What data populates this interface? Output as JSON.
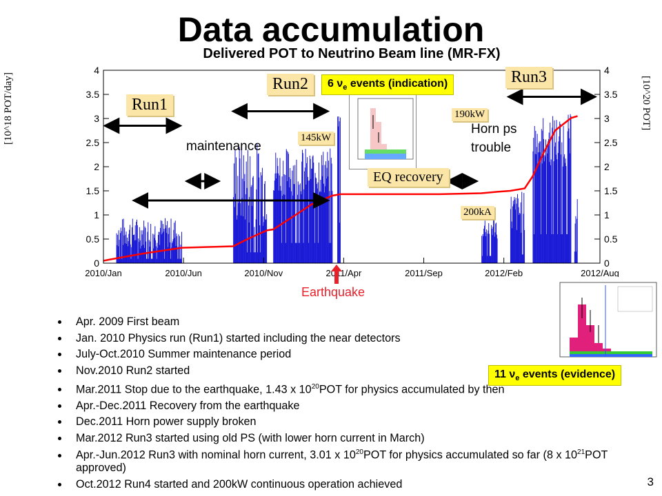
{
  "slide": {
    "title": "Data accumulation",
    "page_number": "3"
  },
  "chart_data": {
    "type": "bar",
    "title": "Delivered POT to Neutrino Beam line (MR-FX)",
    "ylabel_left": "[10^18 POT/day]",
    "ylabel_right": "[10^20 POT]",
    "ylim_left": [
      0,
      4
    ],
    "ylim_right": [
      0,
      4
    ],
    "yticks": [
      "0",
      "0.5",
      "1",
      "1.5",
      "2",
      "2.5",
      "3",
      "3.5",
      "4"
    ],
    "xtick_labels": [
      "2010/Jan",
      "2010/Jun",
      "2010/Nov",
      "2011/Apr",
      "2011/Sep",
      "2012/Feb",
      "2012/Aug"
    ],
    "xtick_months": [
      0,
      5,
      10,
      15,
      20,
      25,
      31
    ],
    "x_range_months": [
      0,
      31
    ],
    "daily_pot_bars_color": "#1a1ad6",
    "cumulative_line_color": "#ff0000",
    "daily_segments": [
      {
        "start": 0.8,
        "end": 4.9,
        "level": 0.3,
        "peak": 0.95
      },
      {
        "start": 8.1,
        "end": 10.2,
        "level": 0.75,
        "peak": 2.55
      },
      {
        "start": 10.6,
        "end": 14.3,
        "level": 1.4,
        "peak": 2.4
      },
      {
        "start": 14.6,
        "end": 14.8,
        "level": 2.8,
        "peak": 3.1
      },
      {
        "start": 23.6,
        "end": 24.6,
        "level": 0.5,
        "peak": 1.0
      },
      {
        "start": 25.4,
        "end": 26.3,
        "level": 0.6,
        "peak": 1.5
      },
      {
        "start": 26.8,
        "end": 29.2,
        "level": 2.0,
        "peak": 3.1
      },
      {
        "start": 29.4,
        "end": 29.6,
        "level": 0.8,
        "peak": 1.5
      }
    ],
    "cumulative": {
      "x": [
        0,
        0.8,
        2.5,
        4.9,
        8.1,
        9.0,
        10.2,
        10.6,
        12.0,
        13.0,
        14.3,
        14.8,
        21.0,
        23.6,
        24.6,
        25.4,
        26.3,
        26.8,
        27.5,
        28.2,
        29.2,
        29.6
      ],
      "y": [
        0.05,
        0.1,
        0.2,
        0.32,
        0.35,
        0.5,
        0.68,
        0.7,
        1.0,
        1.22,
        1.4,
        1.43,
        1.43,
        1.45,
        1.48,
        1.5,
        1.55,
        1.8,
        2.3,
        2.75,
        3.01,
        3.05
      ]
    },
    "period_arrows": [
      {
        "x1": 0.1,
        "x2": 4.8,
        "y": 2.85
      },
      {
        "x1": 5.2,
        "x2": 7.2,
        "y": 1.7
      },
      {
        "x1": 8.1,
        "x2": 14.0,
        "y": 3.15
      },
      {
        "x1": 1.9,
        "x2": 14.0,
        "y": 1.3
      },
      {
        "x1": 21.5,
        "x2": 23.3,
        "y": 1.7
      },
      {
        "x1": 25.3,
        "x2": 30.7,
        "y": 3.45
      }
    ],
    "run_labels": [
      "Run1",
      "Run2",
      "Run3"
    ],
    "annotations": {
      "maintenance": "maintenance",
      "horn_ps_trouble": "Horn ps\ntrouble",
      "eq_recovery": "EQ recovery",
      "p145": "145kW",
      "p190": "190kW",
      "p200": "200kA",
      "earthquake": "Earthquake"
    },
    "event_boxes": {
      "indication": {
        "prefix": "6 ",
        "nu": "ν",
        "sub": "e",
        "suffix": " events (indication)"
      },
      "evidence": {
        "prefix": "11 ",
        "nu": "ν",
        "sub": "e",
        "suffix": " events (evidence)"
      }
    }
  },
  "bullets": [
    {
      "text": "Apr. 2009  First beam"
    },
    {
      "text": "Jan. 2010  Physics run (Run1) started including the near detectors"
    },
    {
      "text": "July-Oct.2010  Summer maintenance period"
    },
    {
      "text": "Nov.2010  Run2 started"
    },
    {
      "pre": "Mar.2011  Stop due to the earthquake, 1.43 x 10",
      "sup": "20",
      "post": "POT for physics accumulated by then"
    },
    {
      "text": "Apr.-Dec.2011  Recovery from the earthquake"
    },
    {
      "text": "Dec.2011  Horn power supply broken"
    },
    {
      "text": "Mar.2012  Run3 started using old PS (with lower horn current in March)"
    },
    {
      "pre": "Apr.-Jun.2012  Run3 with nominal horn current, 3.01 x 10",
      "sup": "20",
      "post": "POT for physics accumulated so far (8 x 10",
      "sup2": "21",
      "post2": "POT approved)"
    },
    {
      "text": "Oct.2012  Run4 started and 200kW continuous operation achieved"
    }
  ]
}
